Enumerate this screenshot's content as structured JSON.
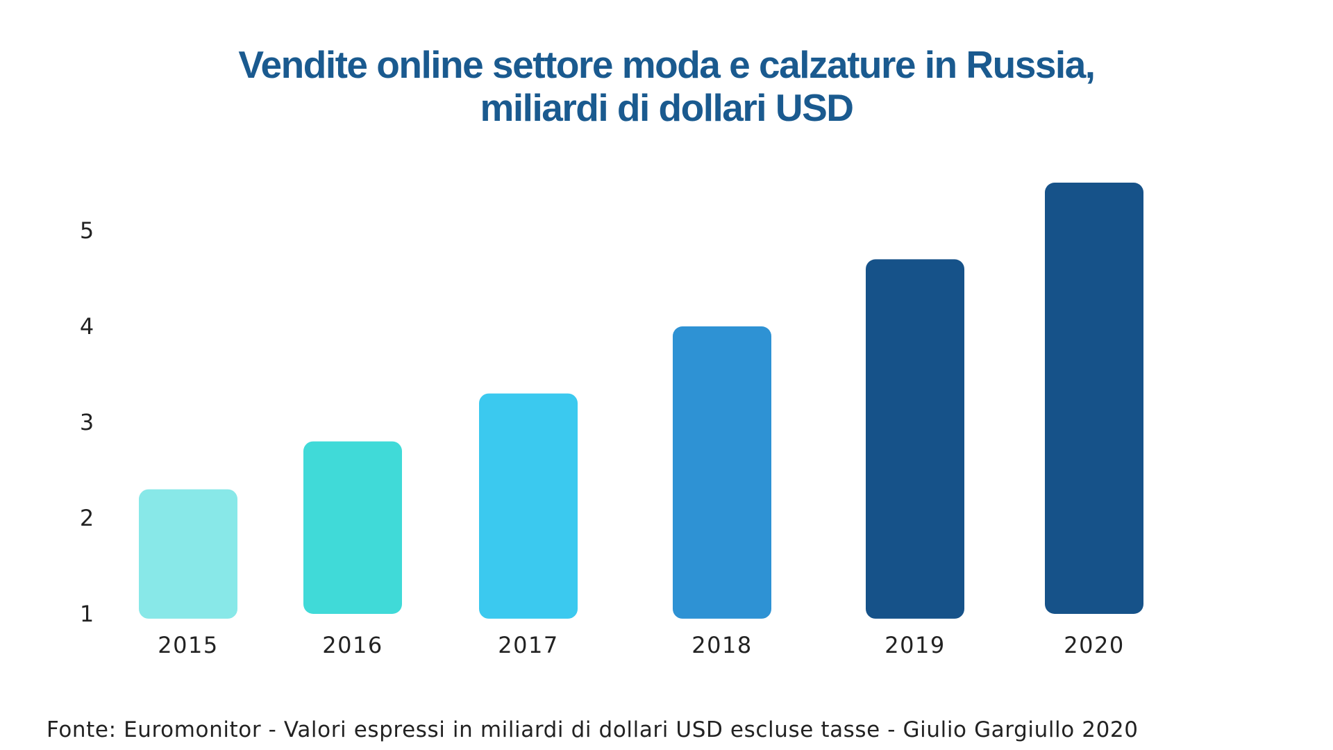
{
  "title": {
    "line1": "Vendite online settore moda e calzature in Russia,",
    "line2": "miliardi di dollari USD"
  },
  "footer": {
    "source": "Fonte: Euromonitor - Valori espressi in miliardi di dollari USD escluse tasse - Giulio Gargiullo 2020"
  },
  "chart_data": {
    "type": "bar",
    "title": "Vendite online settore moda e calzature in Russia, miliardi di dollari USD",
    "xlabel": "",
    "ylabel": "",
    "categories": [
      "2015",
      "2016",
      "2017",
      "2018",
      "2019",
      "2020"
    ],
    "values": [
      2.3,
      2.8,
      3.3,
      4.0,
      4.7,
      5.5
    ],
    "baseline": [
      0.95,
      1.0,
      0.95,
      0.95,
      0.95,
      1.0
    ],
    "colors": [
      "#88e8e8",
      "#40dad8",
      "#3bc9ef",
      "#2e92d4",
      "#165289",
      "#165289"
    ],
    "yticks": [
      "1",
      "2",
      "3",
      "4",
      "5"
    ],
    "ytick_values": [
      1,
      2,
      3,
      4,
      5
    ],
    "ylim": [
      1,
      5.5
    ],
    "grid": false,
    "legend": "none"
  }
}
